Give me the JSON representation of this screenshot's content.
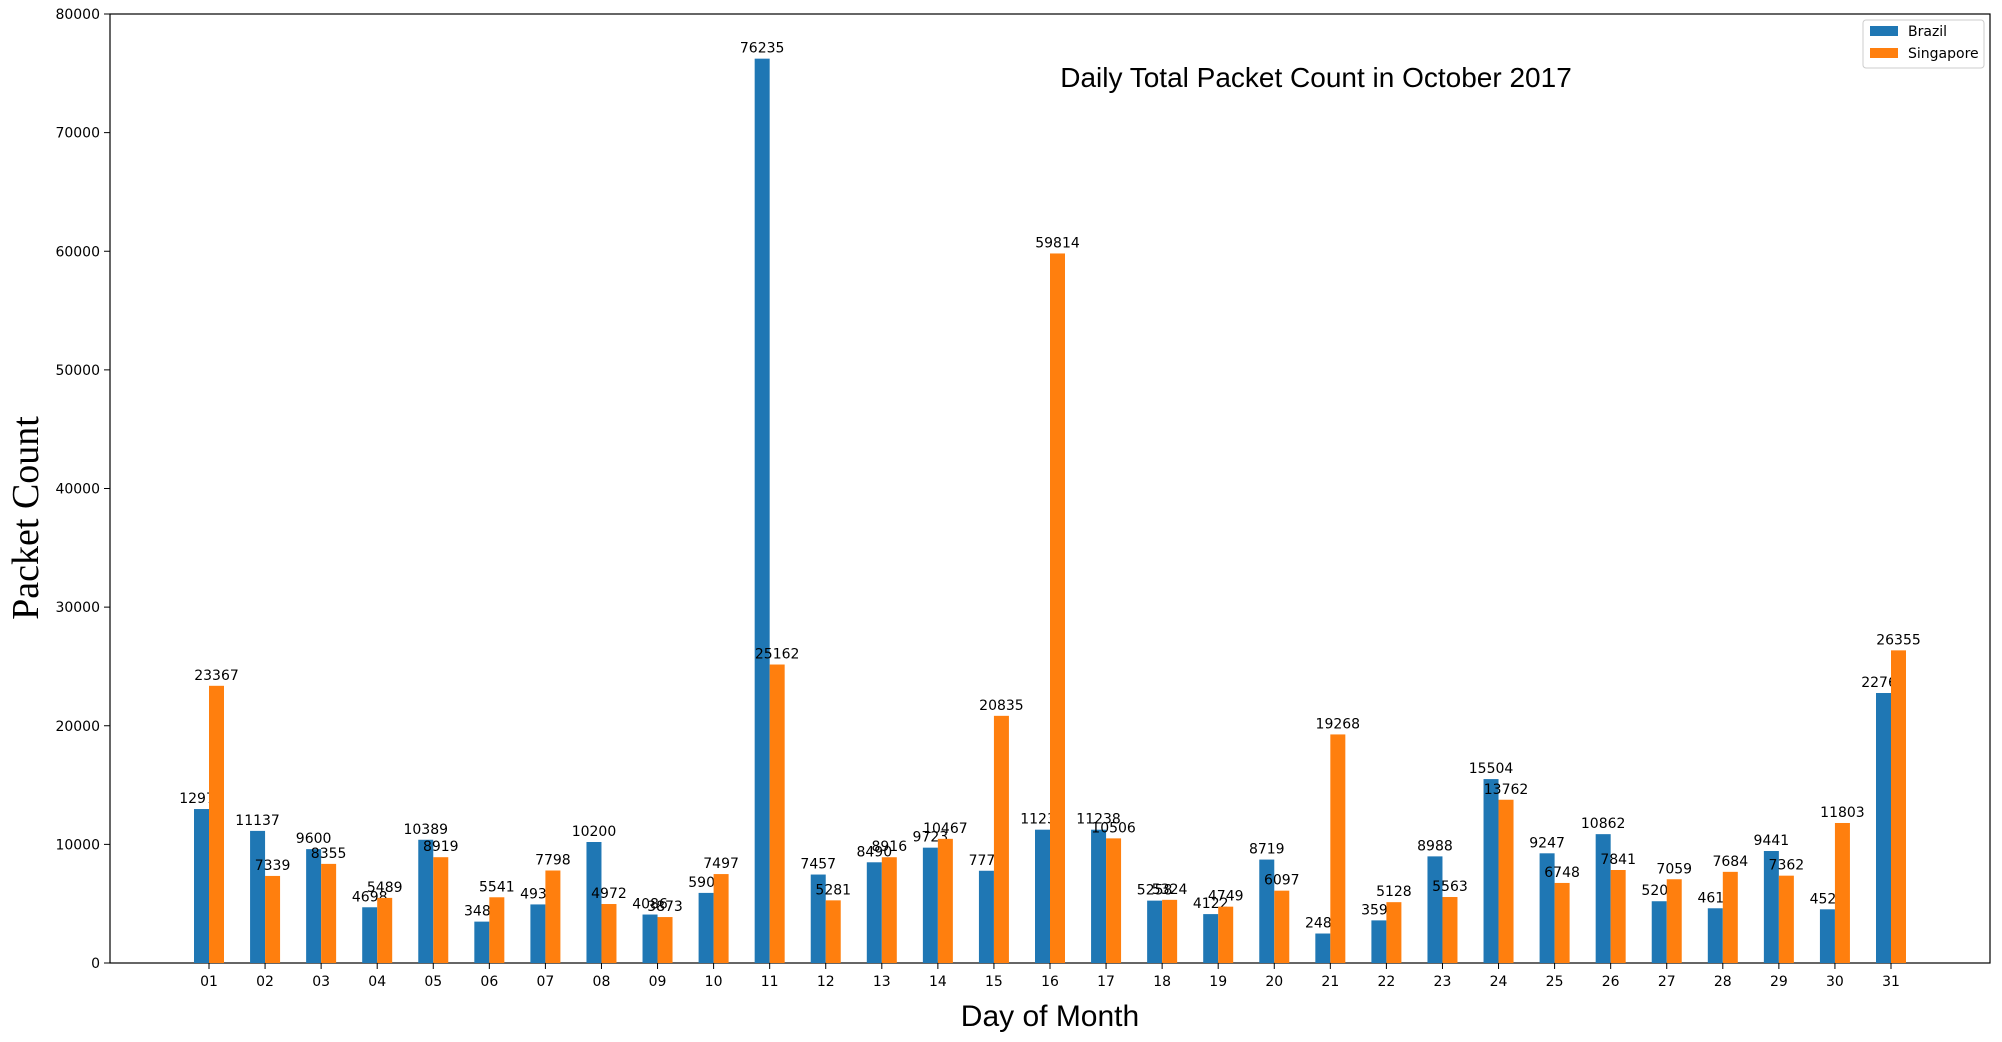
{
  "chart_data": {
    "type": "bar",
    "title": "Daily Total Packet Count in October 2017",
    "xlabel": "Day of Month",
    "ylabel": "Packet Count",
    "ylim": [
      0,
      80000
    ],
    "yticks": [
      0,
      10000,
      20000,
      30000,
      40000,
      50000,
      60000,
      70000,
      80000
    ],
    "grid": false,
    "legend_position": "top-right",
    "categories": [
      "01",
      "02",
      "03",
      "04",
      "05",
      "06",
      "07",
      "08",
      "09",
      "10",
      "11",
      "12",
      "13",
      "14",
      "15",
      "16",
      "17",
      "18",
      "19",
      "20",
      "21",
      "22",
      "23",
      "24",
      "25",
      "26",
      "27",
      "28",
      "29",
      "30",
      "31"
    ],
    "series": [
      {
        "name": "Brazil",
        "color": "#1f77b4",
        "values": [
          12979,
          11137,
          9600,
          4698,
          10389,
          3488,
          4938,
          10200,
          4086,
          5909,
          76235,
          7457,
          8490,
          9723,
          7776,
          11239,
          11238,
          5258,
          4122,
          8719,
          2485,
          3593,
          8988,
          15504,
          9247,
          10862,
          5206,
          4613,
          9441,
          4526,
          22760
        ]
      },
      {
        "name": "Singapore",
        "color": "#ff7f0e",
        "values": [
          23367,
          7339,
          8355,
          5489,
          8919,
          5541,
          7798,
          4972,
          3873,
          7497,
          25162,
          5281,
          8916,
          10467,
          20835,
          59814,
          10506,
          5324,
          4749,
          6097,
          19268,
          5128,
          5563,
          13762,
          6748,
          7841,
          7059,
          7684,
          7362,
          11803,
          26355
        ]
      }
    ]
  }
}
